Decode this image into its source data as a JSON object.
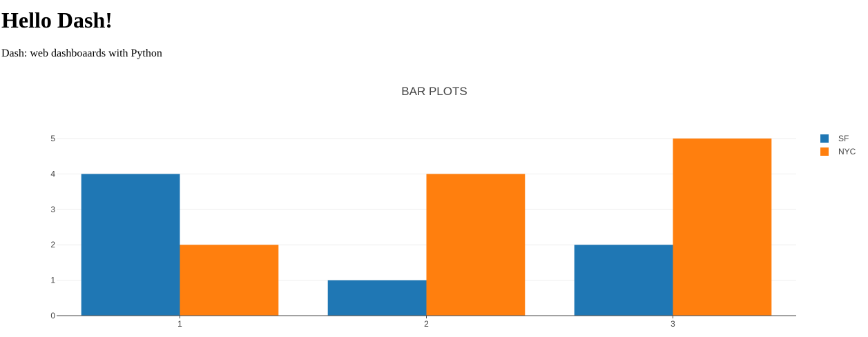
{
  "page": {
    "heading": "Hello Dash!",
    "subtitle": "Dash: web dashboaards with Python"
  },
  "chart_data": {
    "type": "bar",
    "title": "BAR PLOTS",
    "categories": [
      "1",
      "2",
      "3"
    ],
    "series": [
      {
        "name": "SF",
        "values": [
          4,
          1,
          2
        ],
        "color": "#1f77b4"
      },
      {
        "name": "NYC",
        "values": [
          2,
          4,
          5
        ],
        "color": "#ff7f0e"
      }
    ],
    "y_ticks": [
      0,
      1,
      2,
      3,
      4,
      5
    ],
    "ylim": [
      0,
      5
    ],
    "grid": true,
    "legend": "top-right"
  }
}
